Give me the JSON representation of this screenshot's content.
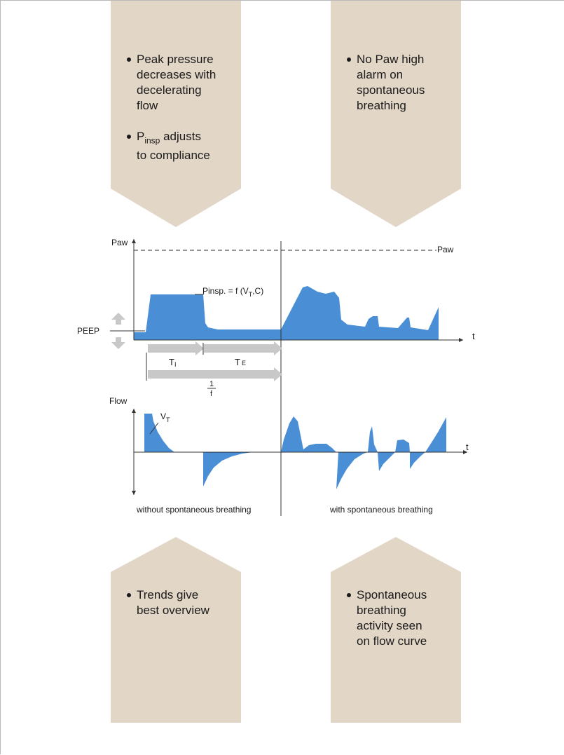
{
  "colors": {
    "callout_fill": "#e2d6c7",
    "curve_fill": "#4a8fd6",
    "arrow_gray": "#c8c8c8",
    "axis": "#333333"
  },
  "callouts": {
    "top_left": {
      "bullet_1": [
        "Peak pressure",
        "decreases with",
        "decelerating",
        "flow"
      ],
      "bullet_2_prefix": "P",
      "bullet_2_sub": "insp",
      "bullet_2_suffix": " adjusts",
      "bullet_2_line2": "to compliance"
    },
    "top_right": {
      "bullet_1": [
        "No Paw high",
        "alarm on",
        "spontaneous",
        "breathing"
      ]
    },
    "bottom_left": {
      "bullet_1": [
        "Trends give",
        "best overview"
      ]
    },
    "bottom_right": {
      "bullet_1": [
        "Spontaneous",
        "breathing",
        "activity seen",
        "on flow curve"
      ]
    }
  },
  "diagram": {
    "paw_axis_label": "Paw",
    "paw_limit_label": "Paw",
    "time_label": "t",
    "peep_label": "PEEP",
    "pinsp_label": "Pinsp. = f (V",
    "pinsp_sub": "T",
    "pinsp_end": ",C)",
    "ti_label": "T",
    "ti_sub": "I",
    "te_label": "T",
    "te_sub": "E",
    "freq_numerator": "1",
    "freq_denominator": "f",
    "flow_axis_label": "Flow",
    "flow_time_label": "t",
    "vt_label": "V",
    "vt_sub": "T",
    "left_caption": "without spontaneous breathing",
    "right_caption": "with spontaneous breathing"
  }
}
